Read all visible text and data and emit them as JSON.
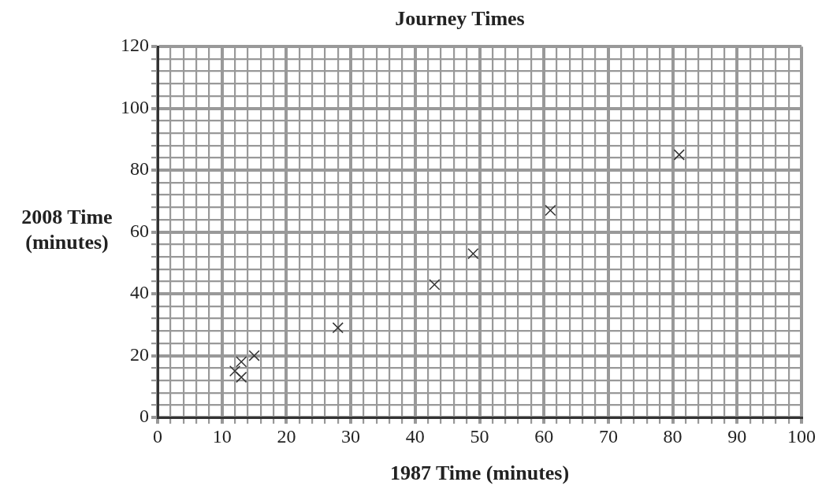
{
  "chart_data": {
    "type": "scatter",
    "title": "Journey Times",
    "xlabel": "1987 Time (minutes)",
    "ylabel": "2008 Time (minutes)",
    "x": [
      12,
      13,
      13,
      15,
      28,
      43,
      49,
      61,
      81
    ],
    "series": [
      {
        "color": "#333333",
        "values": [
          15,
          18,
          13,
          20,
          29,
          43,
          53,
          67,
          85
        ]
      }
    ],
    "marker": "cross",
    "grid": true,
    "legend": false,
    "xlim": [
      0,
      100
    ],
    "ylim": [
      0,
      120
    ],
    "xticks": [
      0,
      {
        "value": 2,
        "label": null
      },
      {
        "value": 4,
        "label": null
      },
      {
        "value": 6,
        "label": null
      },
      {
        "value": 8,
        "label": null
      },
      10,
      {
        "value": 12,
        "label": null
      },
      {
        "value": 14,
        "label": null
      },
      {
        "value": 16,
        "label": null
      },
      {
        "value": 18,
        "label": null
      },
      20,
      {
        "value": 22,
        "label": null
      },
      {
        "value": 24,
        "label": null
      },
      {
        "value": 26,
        "label": null
      },
      {
        "value": 28,
        "label": null
      },
      30,
      {
        "value": 32,
        "label": null
      },
      {
        "value": 34,
        "label": null
      },
      {
        "value": 36,
        "label": null
      },
      {
        "value": 38,
        "label": null
      },
      40,
      {
        "value": 42,
        "label": null
      },
      {
        "value": 44,
        "label": null
      },
      {
        "value": 46,
        "label": null
      },
      {
        "value": 48,
        "label": null
      },
      50,
      {
        "value": 52,
        "label": null
      },
      {
        "value": 54,
        "label": null
      },
      {
        "value": 56,
        "label": null
      },
      {
        "value": 58,
        "label": null
      },
      60,
      {
        "value": 62,
        "label": null
      },
      {
        "value": 64,
        "label": null
      },
      {
        "value": 66,
        "label": null
      },
      {
        "value": 68,
        "label": null
      },
      70,
      {
        "value": 72,
        "label": null
      },
      {
        "value": 74,
        "label": null
      },
      {
        "value": 76,
        "label": null
      },
      {
        "value": 78,
        "label": null
      },
      80,
      {
        "value": 82,
        "label": null
      },
      {
        "value": 84,
        "label": null
      },
      {
        "value": 86,
        "label": null
      },
      {
        "value": 88,
        "label": null
      },
      90,
      {
        "value": 92,
        "label": null
      },
      {
        "value": 94,
        "label": null
      },
      {
        "value": 96,
        "label": null
      },
      {
        "value": 98,
        "label": null
      },
      100
    ],
    "yticks": [
      0,
      {
        "value": 4,
        "label": null
      },
      {
        "value": 8,
        "label": null
      },
      {
        "value": 12,
        "label": null
      },
      {
        "value": 16,
        "label": null
      },
      20,
      {
        "value": 24,
        "label": null
      },
      {
        "value": 28,
        "label": null
      },
      {
        "value": 32,
        "label": null
      },
      {
        "value": 36,
        "label": null
      },
      40,
      {
        "value": 44,
        "label": null
      },
      {
        "value": 48,
        "label": null
      },
      {
        "value": 52,
        "label": null
      },
      {
        "value": 56,
        "label": null
      },
      60,
      {
        "value": 64,
        "label": null
      },
      {
        "value": 68,
        "label": null
      },
      {
        "value": 72,
        "label": null
      },
      {
        "value": 76,
        "label": null
      },
      80,
      {
        "value": 84,
        "label": null
      },
      {
        "value": 88,
        "label": null
      },
      {
        "value": 92,
        "label": null
      },
      {
        "value": 96,
        "label": null
      },
      100,
      {
        "value": 104,
        "label": null
      },
      {
        "value": 108,
        "label": null
      },
      {
        "value": 112,
        "label": null
      },
      {
        "value": 116,
        "label": null
      },
      120
    ]
  }
}
